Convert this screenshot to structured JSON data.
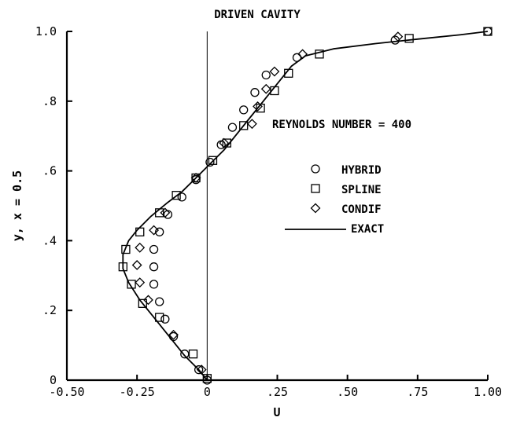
{
  "chart_data": {
    "type": "line",
    "title": "DRIVEN CAVITY",
    "xlabel": "U",
    "ylabel": "y, x = 0.5",
    "xlim": [
      -0.5,
      1.0
    ],
    "ylim": [
      0,
      1.0
    ],
    "x_ticks": [
      -0.5,
      -0.25,
      0,
      0.25,
      0.5,
      0.75,
      1.0
    ],
    "x_tick_labels": [
      "-0.50",
      "-0.25",
      "0",
      ".25",
      ".50",
      ".75",
      "1.00"
    ],
    "y_ticks": [
      0,
      0.2,
      0.4,
      0.6,
      0.8,
      1.0
    ],
    "y_tick_labels": [
      "0",
      ".2",
      ".4",
      ".6",
      ".8",
      "1.0"
    ],
    "grid": false,
    "annotation": "REYNOLDS NUMBER = 400",
    "legend_position": "right-middle",
    "series": [
      {
        "name": "HYBRID",
        "marker": "circle",
        "points": [
          [
            0.0,
            0.0
          ],
          [
            -0.03,
            0.03
          ],
          [
            -0.08,
            0.075
          ],
          [
            -0.12,
            0.125
          ],
          [
            -0.15,
            0.175
          ],
          [
            -0.17,
            0.225
          ],
          [
            -0.19,
            0.275
          ],
          [
            -0.19,
            0.325
          ],
          [
            -0.19,
            0.375
          ],
          [
            -0.17,
            0.425
          ],
          [
            -0.14,
            0.475
          ],
          [
            -0.09,
            0.525
          ],
          [
            -0.04,
            0.575
          ],
          [
            0.01,
            0.625
          ],
          [
            0.05,
            0.675
          ],
          [
            0.09,
            0.725
          ],
          [
            0.13,
            0.775
          ],
          [
            0.17,
            0.825
          ],
          [
            0.21,
            0.875
          ],
          [
            0.32,
            0.925
          ],
          [
            0.67,
            0.975
          ],
          [
            1.0,
            1.0
          ]
        ]
      },
      {
        "name": "SPLINE",
        "marker": "square",
        "points": [
          [
            0.0,
            0.005
          ],
          [
            -0.05,
            0.075
          ],
          [
            -0.17,
            0.18
          ],
          [
            -0.23,
            0.22
          ],
          [
            -0.27,
            0.275
          ],
          [
            -0.3,
            0.325
          ],
          [
            -0.29,
            0.375
          ],
          [
            -0.24,
            0.425
          ],
          [
            -0.17,
            0.48
          ],
          [
            -0.11,
            0.53
          ],
          [
            -0.04,
            0.58
          ],
          [
            0.02,
            0.63
          ],
          [
            0.07,
            0.68
          ],
          [
            0.13,
            0.73
          ],
          [
            0.19,
            0.78
          ],
          [
            0.24,
            0.83
          ],
          [
            0.29,
            0.88
          ],
          [
            0.4,
            0.935
          ],
          [
            0.72,
            0.98
          ],
          [
            1.0,
            1.0
          ]
        ]
      },
      {
        "name": "CONDIF",
        "marker": "diamond",
        "points": [
          [
            -0.02,
            0.03
          ],
          [
            -0.12,
            0.13
          ],
          [
            -0.21,
            0.23
          ],
          [
            -0.24,
            0.28
          ],
          [
            -0.25,
            0.33
          ],
          [
            -0.24,
            0.38
          ],
          [
            -0.19,
            0.43
          ],
          [
            -0.15,
            0.48
          ],
          [
            -0.04,
            0.58
          ],
          [
            0.06,
            0.68
          ],
          [
            0.16,
            0.735
          ],
          [
            0.18,
            0.785
          ],
          [
            0.21,
            0.835
          ],
          [
            0.24,
            0.885
          ],
          [
            0.34,
            0.935
          ],
          [
            0.68,
            0.985
          ]
        ]
      },
      {
        "name": "EXACT",
        "marker": "line",
        "points": [
          [
            0.0,
            0.0
          ],
          [
            -0.03,
            0.03
          ],
          [
            -0.08,
            0.07
          ],
          [
            -0.13,
            0.12
          ],
          [
            -0.19,
            0.18
          ],
          [
            -0.24,
            0.23
          ],
          [
            -0.28,
            0.28
          ],
          [
            -0.3,
            0.32
          ],
          [
            -0.3,
            0.36
          ],
          [
            -0.28,
            0.4
          ],
          [
            -0.25,
            0.43
          ],
          [
            -0.2,
            0.47
          ],
          [
            -0.14,
            0.51
          ],
          [
            -0.09,
            0.54
          ],
          [
            -0.04,
            0.58
          ],
          [
            0.01,
            0.62
          ],
          [
            0.06,
            0.66
          ],
          [
            0.1,
            0.7
          ],
          [
            0.15,
            0.75
          ],
          [
            0.2,
            0.8
          ],
          [
            0.25,
            0.85
          ],
          [
            0.3,
            0.9
          ],
          [
            0.35,
            0.93
          ],
          [
            0.45,
            0.95
          ],
          [
            0.6,
            0.965
          ],
          [
            0.75,
            0.978
          ],
          [
            0.9,
            0.99
          ],
          [
            1.0,
            1.0
          ]
        ]
      }
    ]
  }
}
